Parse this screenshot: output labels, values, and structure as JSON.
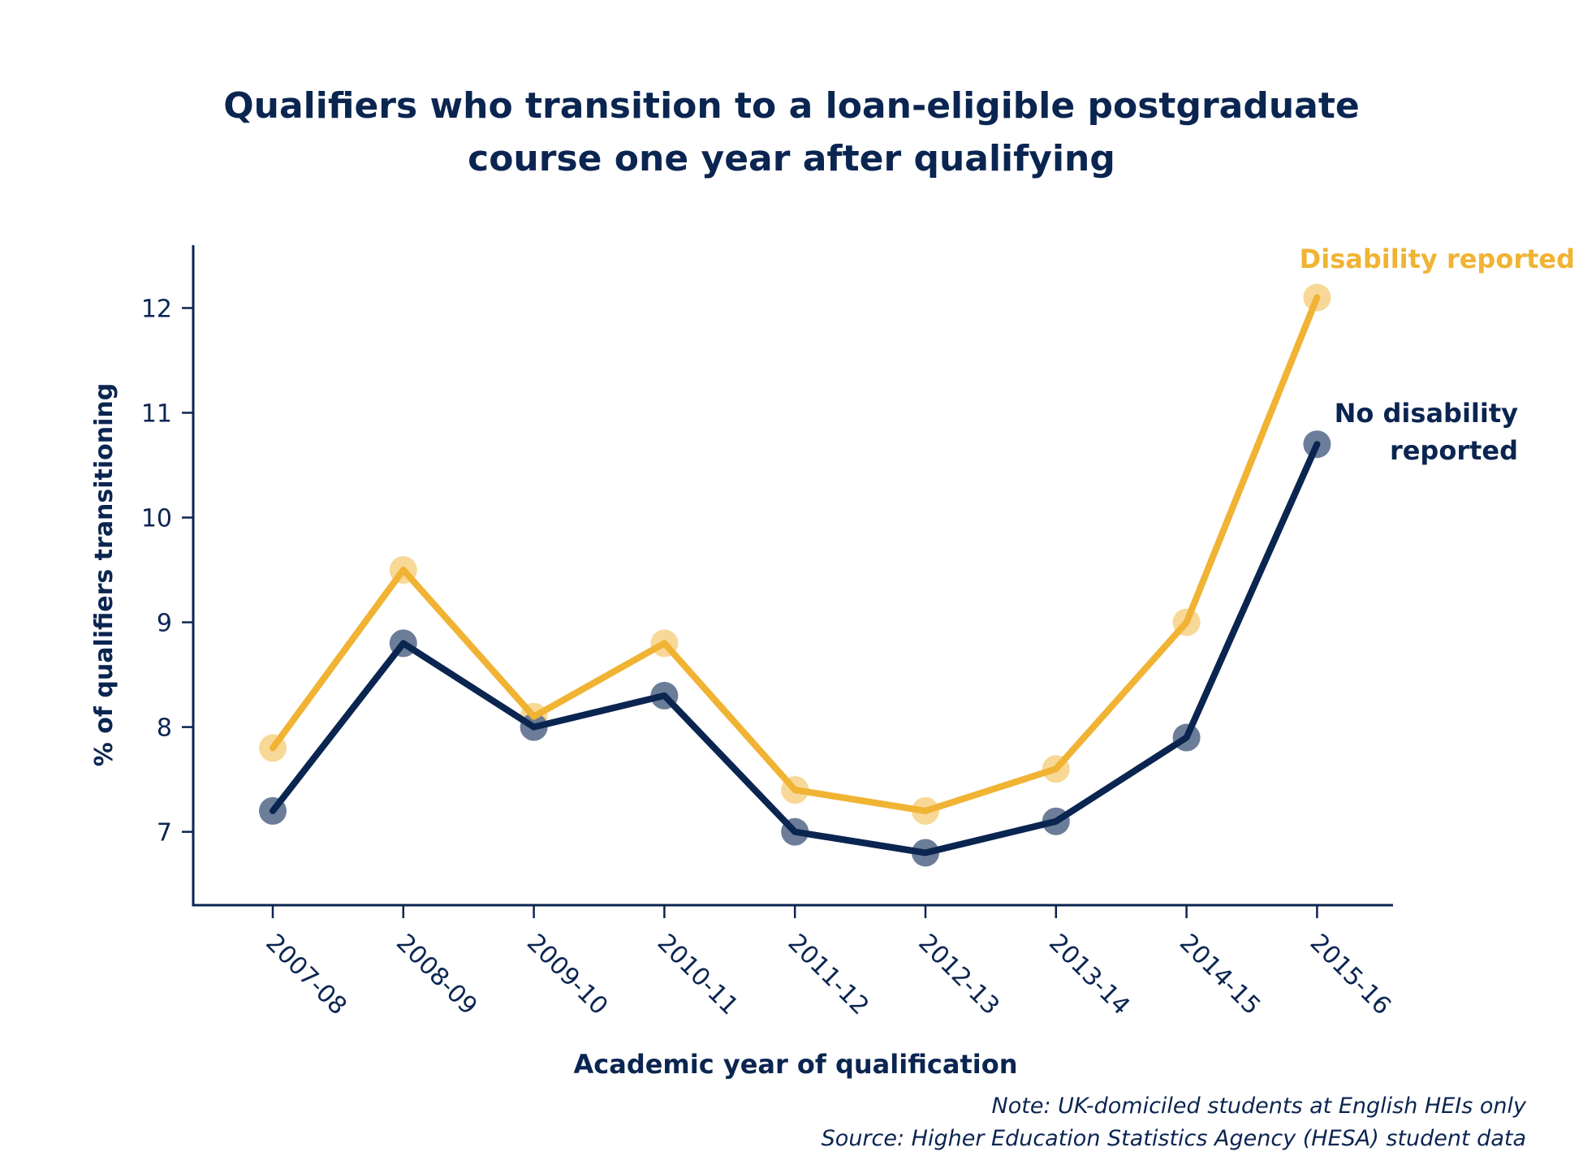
{
  "title_lines": [
    "Qualifiers who transition to a loan-eligible postgraduate",
    "course one year after qualifying"
  ],
  "note": "Note: UK-domiciled students at English HEIs only",
  "source": "Source: Higher Education Statistics Agency (HESA) student data",
  "colors": {
    "no_disability": "#0b2551",
    "disability": "#f0b333",
    "no_disability_marker": "#5f7290",
    "disability_marker": "#f7d58e",
    "axis": "#0b2551"
  },
  "chart_data": {
    "type": "line",
    "title": "Qualifiers who transition to a loan-eligible postgraduate course one year after qualifying",
    "xlabel": "Academic year of qualification",
    "ylabel": "% of qualifiers transitioning",
    "categories": [
      "2007-08",
      "2008-09",
      "2009-10",
      "2010-11",
      "2011-12",
      "2012-13",
      "2013-14",
      "2014-15",
      "2015-16"
    ],
    "yticks": [
      7,
      8,
      9,
      10,
      11,
      12
    ],
    "ylim": [
      6.3,
      12.6
    ],
    "grid": false,
    "series": [
      {
        "key": "disability",
        "name": "Disability reported",
        "label_lines": [
          "Disability reported"
        ],
        "values": [
          7.8,
          9.5,
          8.1,
          8.8,
          7.4,
          7.2,
          7.6,
          9.0,
          12.1
        ]
      },
      {
        "key": "no_disability",
        "name": "No disability reported",
        "label_lines": [
          "No disability",
          "reported"
        ],
        "values": [
          7.2,
          8.8,
          8.0,
          8.3,
          7.0,
          6.8,
          7.1,
          7.9,
          10.7
        ]
      }
    ]
  }
}
